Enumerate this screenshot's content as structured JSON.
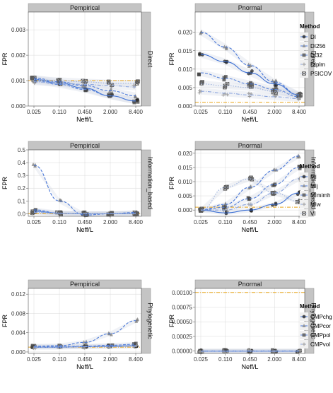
{
  "figure": {
    "x_axis_label": "Neff/L",
    "y_axis_label": "FPR",
    "x_tick_labels": [
      "0.025",
      "0.110",
      "0.450",
      "2.000",
      "8.400"
    ]
  },
  "colors": {
    "panel_bg": "#ffffff",
    "grid": "#d9d9d9",
    "strip_bg": "#c4c4c4",
    "threshold_line": "#e8a317",
    "points_dark": "#2b2b2b",
    "points_gray": "#808080",
    "series_blue": "#3b6fd4",
    "band": "#d4d9e6"
  },
  "chart_data": [
    {
      "type": "scatter",
      "row": "Direct",
      "column": "Pempirical",
      "ylim": [
        0,
        0.0037
      ],
      "y_ticks": [
        0,
        0.001,
        0.002,
        0.003
      ],
      "y_tick_labels": [
        "0.000",
        "0.001",
        "0.002",
        "0.003"
      ],
      "reference_line": 0.001,
      "series": [
        {
          "name": "DI",
          "values": [
            0.00105,
            0.0009,
            0.0007,
            0.0004,
            0.0002
          ],
          "style": "solid"
        },
        {
          "name": "DI256",
          "values": [
            0.0011,
            0.00095,
            0.0008,
            0.0006,
            0.0004
          ],
          "style": "dashed"
        },
        {
          "name": "DI32",
          "values": [
            0.001,
            0.00085,
            0.00065,
            0.0004,
            0.0002
          ],
          "style": "dashed"
        },
        {
          "name": "DIplm",
          "values": [
            0.00095,
            0.0009,
            0.00085,
            0.0008,
            0.00075
          ],
          "style": "dotdash"
        },
        {
          "name": "PSICOV",
          "values": [
            0.00105,
            0.001,
            0.00095,
            0.0009,
            0.0009
          ],
          "style": "dotted"
        }
      ]
    },
    {
      "type": "scatter",
      "row": "Direct",
      "column": "Pnormal",
      "ylim": [
        0,
        0.0255
      ],
      "y_ticks": [
        0,
        0.005,
        0.01,
        0.015,
        0.02
      ],
      "y_tick_labels": [
        "0.000",
        "0.005",
        "0.010",
        "0.015",
        "0.020"
      ],
      "reference_line": 0.001,
      "series": [
        {
          "name": "DI",
          "values": [
            0.014,
            0.012,
            0.009,
            0.006,
            0.003
          ],
          "style": "solid"
        },
        {
          "name": "DI256",
          "values": [
            0.02,
            0.016,
            0.011,
            0.0065,
            0.003
          ],
          "style": "dashed"
        },
        {
          "name": "DI32",
          "values": [
            0.009,
            0.0075,
            0.006,
            0.0045,
            0.0025
          ],
          "style": "dashed"
        },
        {
          "name": "DIplm",
          "values": [
            0.004,
            0.0035,
            0.003,
            0.0025,
            0.002
          ],
          "style": "dotdash"
        },
        {
          "name": "PSICOV",
          "values": [
            0.006,
            0.0055,
            0.005,
            0.004,
            0.003
          ],
          "style": "dotted"
        }
      ]
    },
    {
      "type": "scatter",
      "row": "Information_based",
      "column": "Pempirical",
      "ylim": [
        -0.02,
        0.5
      ],
      "y_ticks": [
        0,
        0.1,
        0.2,
        0.3,
        0.4,
        0.5
      ],
      "y_tick_labels": [
        "0.0",
        "0.1",
        "0.2",
        "0.3",
        "0.4",
        "0.5"
      ],
      "reference_line": 0.001,
      "series": [
        {
          "name": "MI",
          "values": [
            0.02,
            0.004,
            0.0,
            0.0,
            0.002
          ],
          "style": "solid"
        },
        {
          "name": "MIj",
          "values": [
            0.38,
            0.1,
            -0.01,
            0.0,
            0.01
          ],
          "style": "dashed"
        },
        {
          "name": "MImimh",
          "values": [
            0.03,
            0.005,
            0.0,
            0.0,
            0.003
          ],
          "style": "dashed"
        },
        {
          "name": "MIw",
          "values": [
            0.01,
            0.003,
            0.0,
            0.0,
            0.001
          ],
          "style": "dotdash"
        },
        {
          "name": "VI",
          "values": [
            0.015,
            0.004,
            0.001,
            0.001,
            0.002
          ],
          "style": "dotted"
        }
      ]
    },
    {
      "type": "scatter",
      "row": "Information_based",
      "column": "Pnormal",
      "ylim": [
        -0.0022,
        0.0212
      ],
      "y_ticks": [
        0,
        0.005,
        0.01,
        0.015,
        0.02
      ],
      "y_tick_labels": [
        "0.000",
        "0.005",
        "0.010",
        "0.015",
        "0.020"
      ],
      "reference_line": 0.001,
      "series": [
        {
          "name": "MI",
          "values": [
            0.0,
            -0.001,
            0.0,
            0.002,
            0.006
          ],
          "style": "solid"
        },
        {
          "name": "MIj",
          "values": [
            0.0,
            0.002,
            0.008,
            0.014,
            0.019
          ],
          "style": "dashed"
        },
        {
          "name": "MImimh",
          "values": [
            0.0,
            0.001,
            0.004,
            0.009,
            0.015
          ],
          "style": "dashed"
        },
        {
          "name": "MIw",
          "values": [
            0.0,
            0.0,
            0.002,
            0.006,
            0.011
          ],
          "style": "dotdash"
        },
        {
          "name": "VI",
          "values": [
            0.0,
            0.008,
            0.011,
            0.006,
            0.003
          ],
          "style": "dotted"
        }
      ]
    },
    {
      "type": "scatter",
      "row": "Phylogenetic",
      "column": "Pempirical",
      "ylim": [
        -0.0003,
        0.0132
      ],
      "y_ticks": [
        0,
        0.004,
        0.008,
        0.012
      ],
      "y_tick_labels": [
        "0.000",
        "0.004",
        "0.008",
        "0.012"
      ],
      "reference_line": 0.001,
      "series": [
        {
          "name": "CMPchg",
          "values": [
            0.001,
            0.001,
            0.0011,
            0.0012,
            0.0013
          ],
          "style": "solid"
        },
        {
          "name": "CMPcor",
          "values": [
            0.0012,
            0.0013,
            0.002,
            0.0038,
            0.0065
          ],
          "style": "dashed"
        },
        {
          "name": "CMPpol",
          "values": [
            0.0011,
            0.0011,
            0.0012,
            0.0014,
            0.0016
          ],
          "style": "dashed"
        },
        {
          "name": "CMPvol",
          "values": [
            0.001,
            0.001,
            0.0011,
            0.0011,
            0.0012
          ],
          "style": "dotdash"
        }
      ]
    },
    {
      "type": "scatter",
      "row": "Phylogenetic",
      "column": "Pnormal",
      "ylim": [
        -4e-05,
        0.00107
      ],
      "y_ticks": [
        0,
        0.00025,
        0.0005,
        0.00075,
        0.001
      ],
      "y_tick_labels": [
        "0.00000",
        "0.00025",
        "0.00050",
        "0.00075",
        "0.00100"
      ],
      "reference_line": 0.001,
      "series": [
        {
          "name": "CMPchg",
          "values": [
            0,
            0,
            0,
            0,
            0
          ],
          "style": "solid"
        },
        {
          "name": "CMPcor",
          "values": [
            0,
            0,
            0,
            0,
            0
          ],
          "style": "dashed"
        },
        {
          "name": "CMPpol",
          "values": [
            0,
            0,
            0,
            0,
            0
          ],
          "style": "dashed"
        },
        {
          "name": "CMPvol",
          "values": [
            0,
            0,
            0,
            0,
            0
          ],
          "style": "dotdash"
        }
      ]
    }
  ],
  "legends": [
    {
      "title": "Method",
      "row": "Direct",
      "items": [
        "DI",
        "DI256",
        "DI32",
        "DIplm",
        "PSICOV"
      ]
    },
    {
      "title": "Method",
      "row": "Information_based",
      "items": [
        "MI",
        "MIj",
        "MImimh",
        "MIw",
        "VI"
      ]
    },
    {
      "title": "Method",
      "row": "Phylogenetic",
      "items": [
        "CMPchg",
        "CMPcor",
        "CMPpol",
        "CMPvol"
      ]
    }
  ]
}
